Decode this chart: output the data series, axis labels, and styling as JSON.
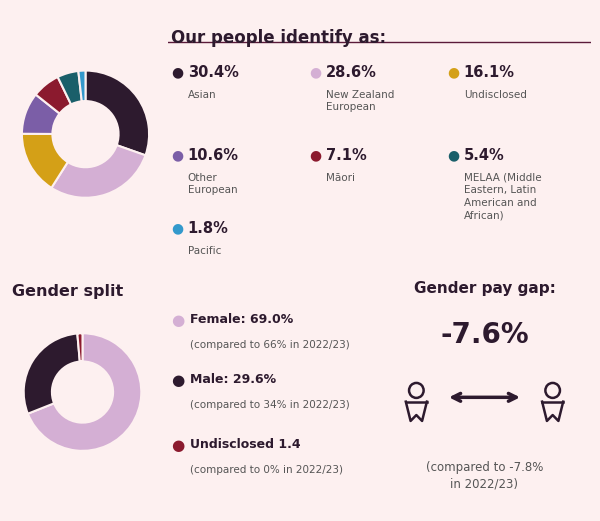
{
  "bg_color": "#fdf0f0",
  "title_ethnicity": "Our people identify as:",
  "ethnicity_values": [
    30.4,
    28.6,
    16.1,
    10.6,
    7.1,
    5.4,
    1.8
  ],
  "ethnicity_labels": [
    "Asian",
    "New Zealand\nEuropean",
    "Undisclosed",
    "Other\nEuropean",
    "Māori",
    "MELAA (Middle\nEastern, Latin\nAmerican and\nAfrican)",
    "Pacific"
  ],
  "ethnicity_pcts": [
    "30.4%",
    "28.6%",
    "16.1%",
    "10.6%",
    "7.1%",
    "5.4%",
    "1.8%"
  ],
  "ethnicity_colors": [
    "#2d1a2e",
    "#d4afd4",
    "#d4a017",
    "#7b5ea7",
    "#8b1a2e",
    "#1a5f6a",
    "#3399cc"
  ],
  "gender_title": "Gender split",
  "gender_values": [
    69.0,
    29.6,
    1.4
  ],
  "gender_labels": [
    "Female: 69.0%",
    "Male: 29.6%",
    "Undisclosed 1.4"
  ],
  "gender_sublabels": [
    "(compared to 66% in 2022/23)",
    "(compared to 34% in 2022/23)",
    "(compared to 0% in 2022/23)"
  ],
  "gender_colors": [
    "#d4afd4",
    "#2d1a2e",
    "#8b1a2e"
  ],
  "pay_gap_title": "Gender pay gap:",
  "pay_gap_value": "-7.6%",
  "pay_gap_sublabel": "(compared to -7.8%\nin 2022/23)",
  "line_color": "#5a1a3a",
  "label_bold_color": "#2d1a2e",
  "label_normal_color": "#555555"
}
